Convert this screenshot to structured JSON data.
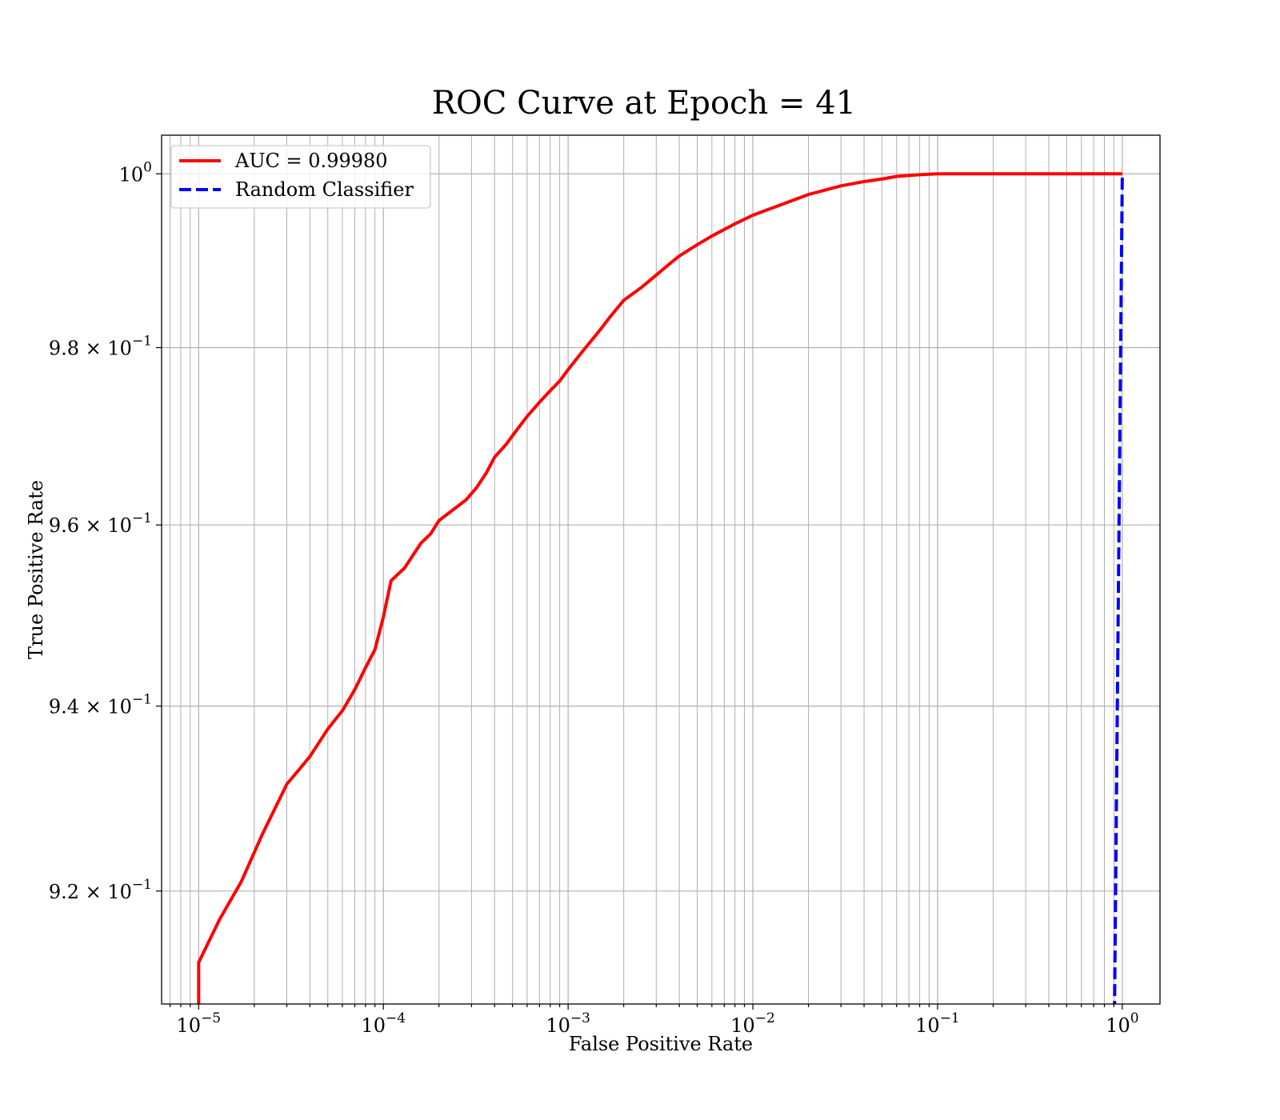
{
  "chart_data": {
    "type": "line",
    "title": "ROC Curve at Epoch = 41",
    "xlabel": "False Positive Rate",
    "ylabel": "True Positive Rate",
    "xscale": "log",
    "yscale": "log",
    "xlim": [
      6.3e-06,
      1.6
    ],
    "ylim": [
      0.908,
      1.0045
    ],
    "grid": true,
    "grid_minor": true,
    "legend_position": "upper-left",
    "x_ticks": [
      {
        "base": "10",
        "exp": "−5"
      },
      {
        "base": "10",
        "exp": "−4"
      },
      {
        "base": "10",
        "exp": "−3"
      },
      {
        "base": "10",
        "exp": "−2"
      },
      {
        "base": "10",
        "exp": "−1"
      },
      {
        "base": "10",
        "exp": "0"
      }
    ],
    "y_ticks": [
      {
        "mant": "",
        "base": "10",
        "exp": "0"
      },
      {
        "mant": "9.8 × ",
        "base": "10",
        "exp": "−1"
      },
      {
        "mant": "9.6 × ",
        "base": "10",
        "exp": "−1"
      },
      {
        "mant": "9.4 × ",
        "base": "10",
        "exp": "−1"
      },
      {
        "mant": "9.2 × ",
        "base": "10",
        "exp": "−1"
      }
    ],
    "series": [
      {
        "name": "AUC = 0.99980",
        "color": "#ff0000",
        "style": "solid",
        "x": [
          1e-05,
          1e-05,
          1.3e-05,
          1.7e-05,
          2.2e-05,
          3e-05,
          4e-05,
          5e-05,
          6e-05,
          7e-05,
          8e-05,
          9e-05,
          0.0001,
          0.00011,
          0.00013,
          0.00016,
          0.00018,
          0.0002,
          0.00028,
          0.00032,
          0.00036,
          0.0004,
          0.00046,
          0.00052,
          0.0006,
          0.0007,
          0.0008,
          0.0009,
          0.001,
          0.0012,
          0.0015,
          0.0017,
          0.002,
          0.0025,
          0.003,
          0.0035,
          0.004,
          0.005,
          0.006,
          0.008,
          0.01,
          0.015,
          0.02,
          0.03,
          0.04,
          0.05,
          0.06,
          0.08,
          0.1,
          0.13,
          0.2,
          0.5,
          1.0
        ],
        "y": [
          0.908,
          0.9124,
          0.917,
          0.921,
          0.926,
          0.9315,
          0.9345,
          0.9375,
          0.9395,
          0.9418,
          0.9442,
          0.9462,
          0.9498,
          0.9538,
          0.9552,
          0.958,
          0.959,
          0.9605,
          0.9628,
          0.9642,
          0.9658,
          0.9676,
          0.969,
          0.9705,
          0.9722,
          0.9738,
          0.9751,
          0.9762,
          0.9775,
          0.9796,
          0.9821,
          0.9836,
          0.9854,
          0.9869,
          0.9883,
          0.9895,
          0.9905,
          0.9918,
          0.9928,
          0.9942,
          0.9952,
          0.9966,
          0.9976,
          0.9986,
          0.9991,
          0.9994,
          0.9997,
          0.9999,
          1.0,
          1.0,
          1.0,
          1.0,
          1.0
        ]
      },
      {
        "name": "Random Classifier",
        "color": "#0000ff",
        "style": "dashed",
        "x": [
          0.9,
          1.0
        ],
        "y": [
          0.9,
          1.0
        ]
      }
    ]
  }
}
